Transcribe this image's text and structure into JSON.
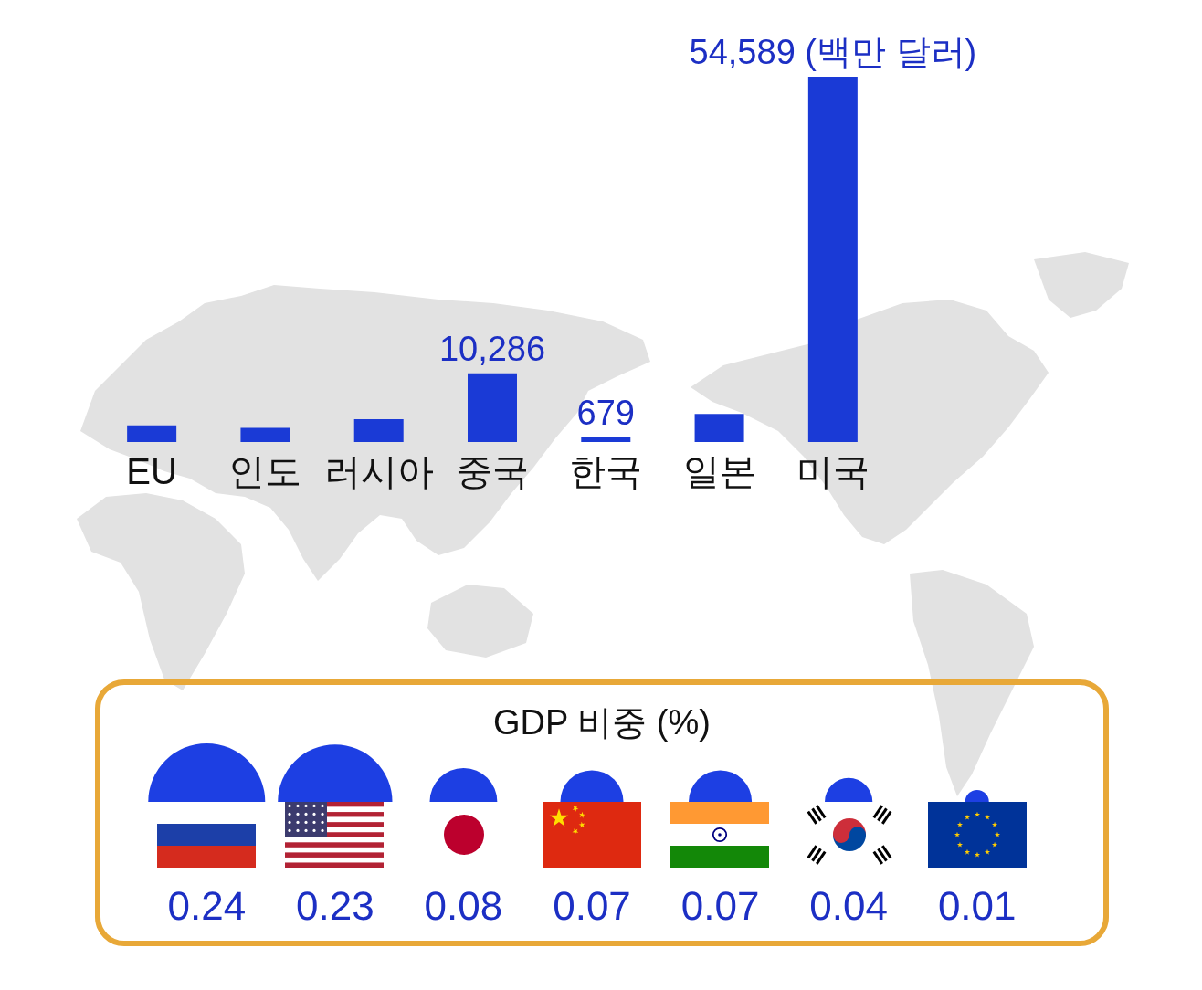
{
  "chart_data": [
    {
      "type": "bar",
      "categories": [
        "EU",
        "인도",
        "러시아",
        "중국",
        "한국",
        "일본",
        "미국"
      ],
      "values": [
        2500,
        2100,
        3400,
        10286,
        679,
        4200,
        54589
      ],
      "color": "#1a3ad6",
      "value_labels": [
        null,
        null,
        null,
        "10,286",
        "679",
        null,
        "54,589 (백만 달러)"
      ]
    },
    {
      "type": "other",
      "title": "GDP 비중 (%)",
      "categories": [
        null,
        null,
        null,
        null,
        null,
        null,
        null
      ],
      "values": [
        0.24,
        0.23,
        0.08,
        0.07,
        0.07,
        0.04,
        0.01
      ],
      "color": "#1d3fe3",
      "data_labels": true
    }
  ]
}
